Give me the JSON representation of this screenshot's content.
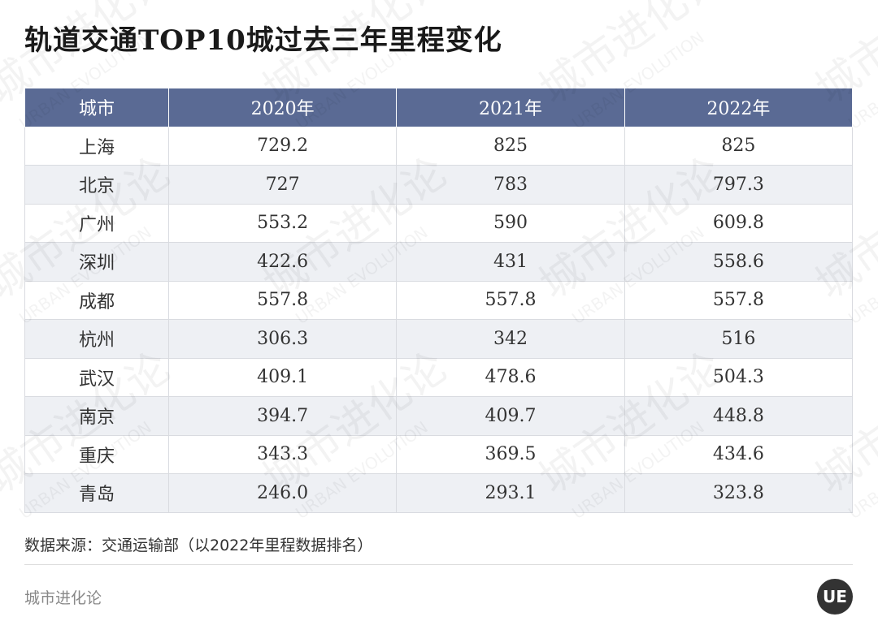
{
  "header": {
    "title": "轨道交通TOP10城过去三年里程变化"
  },
  "table": {
    "columns": [
      "城市",
      "2020年",
      "2021年",
      "2022年"
    ],
    "rows": [
      [
        "上海",
        "729.2",
        "825",
        "825"
      ],
      [
        "北京",
        "727",
        "783",
        "797.3"
      ],
      [
        "广州",
        "553.2",
        "590",
        "609.8"
      ],
      [
        "深圳",
        "422.6",
        "431",
        "558.6"
      ],
      [
        "成都",
        "557.8",
        "557.8",
        "557.8"
      ],
      [
        "杭州",
        "306.3",
        "342",
        "516"
      ],
      [
        "武汉",
        "409.1",
        "478.6",
        "504.3"
      ],
      [
        "南京",
        "394.7",
        "409.7",
        "448.8"
      ],
      [
        "重庆",
        "343.3",
        "369.5",
        "434.6"
      ],
      [
        "青岛",
        "246.0",
        "293.1",
        "323.8"
      ]
    ]
  },
  "footer": {
    "source": "数据来源：交通运输部（以2022年里程数据排名）",
    "brand": "城市进化论",
    "logo": "UE"
  },
  "watermark": {
    "cn": "城市进化论",
    "en": "URBAN EVOLUTION"
  }
}
